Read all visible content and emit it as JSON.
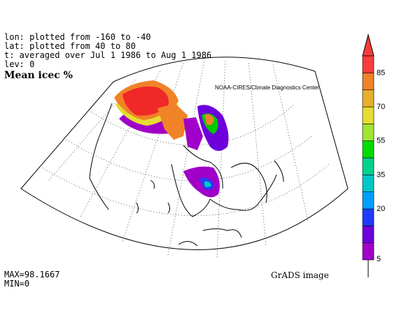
{
  "header": {
    "lon_text": "lon: plotted from -160 to -40",
    "lat_text": "lat: plotted from 40 to 80",
    "time_text": "t: averaged over Jul 1 1986 to Aug 1 1986",
    "lev_text": "lev: 0"
  },
  "title": "Mean icec %",
  "credit": "NOAA-CIRES/Climate Diagnostics Center",
  "stats": {
    "max_text": "MAX=98.1667",
    "min_text": "MIN=0"
  },
  "footer": "GrADS image",
  "colorbar": {
    "labels": [
      "5",
      "20",
      "35",
      "55",
      "70",
      "85"
    ],
    "colors": [
      "#a000c8",
      "#6e00dc",
      "#1e3cff",
      "#00a0ff",
      "#00c8c8",
      "#00d28c",
      "#00dc00",
      "#a0e632",
      "#e6dc32",
      "#e6af2d",
      "#f08228",
      "#fa3c3c"
    ]
  },
  "map_colors": {
    "red": "#f02828",
    "orange": "#f08228",
    "yellow": "#e6dc32",
    "green": "#00c800",
    "cyan": "#00c8c8",
    "blue": "#1e3cff",
    "purple": "#a000c8",
    "violet": "#6e00dc"
  }
}
